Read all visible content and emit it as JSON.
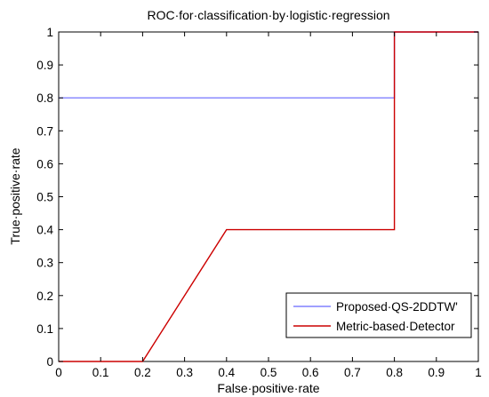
{
  "chart_data": {
    "type": "line",
    "title": "ROC·for·classification·by·logistic·regression",
    "xlabel": "False·positive·rate",
    "ylabel": "True·positive·rate",
    "xlim": [
      0,
      1
    ],
    "ylim": [
      0,
      1
    ],
    "x_ticks": [
      0,
      0.1,
      0.2,
      0.3,
      0.4,
      0.5,
      0.6,
      0.7,
      0.8,
      0.9,
      1
    ],
    "y_ticks": [
      0,
      0.1,
      0.2,
      0.3,
      0.4,
      0.5,
      0.6,
      0.7,
      0.8,
      0.9,
      1
    ],
    "x_tick_labels": [
      "0",
      "0.1",
      "0.2",
      "0.3",
      "0.4",
      "0.5",
      "0.6",
      "0.7",
      "0.8",
      "0.9",
      "1"
    ],
    "y_tick_labels": [
      "0",
      "0.1",
      "0.2",
      "0.3",
      "0.4",
      "0.5",
      "0.6",
      "0.7",
      "0.8",
      "0.9",
      "1"
    ],
    "grid": false,
    "legend_position": "bottom-right",
    "series": [
      {
        "name": "Proposed·QS-2DDTW'",
        "color": "#8080ff",
        "x": [
          0,
          0.8,
          0.8,
          1
        ],
        "y": [
          0.8,
          0.8,
          1,
          1
        ]
      },
      {
        "name": "Metric-based·Detector",
        "color": "#cc0000",
        "x": [
          0,
          0.2,
          0.4,
          0.8,
          0.8,
          1
        ],
        "y": [
          0,
          0,
          0.4,
          0.4,
          1,
          1
        ]
      }
    ]
  }
}
